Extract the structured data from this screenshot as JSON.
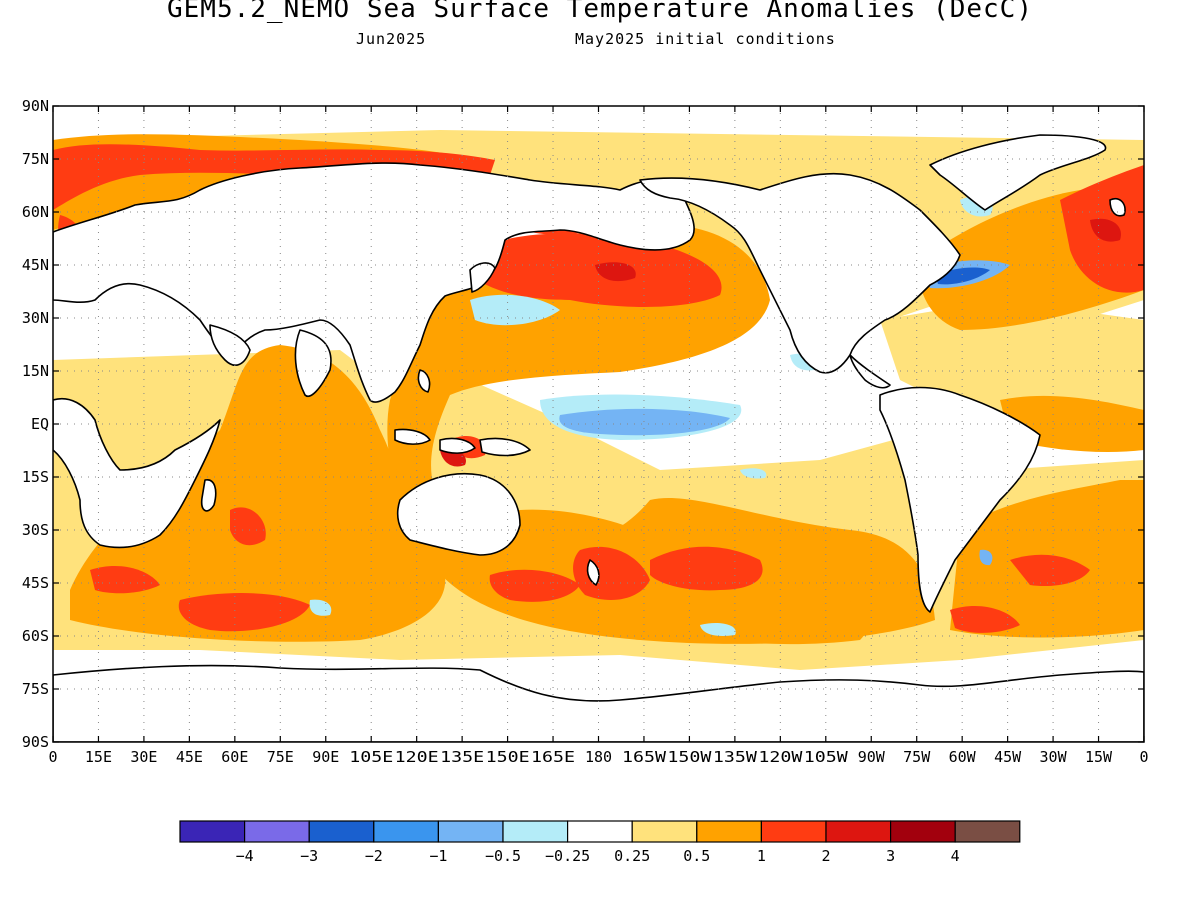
{
  "title": "GEM5.2_NEMO Sea Surface Temperature Anomalies (DecC)",
  "subtitle_left": "Jun2025",
  "subtitle_right": "May2025 initial conditions",
  "y_ticks": [
    "90N",
    "75N",
    "60N",
    "45N",
    "30N",
    "15N",
    "EQ",
    "15S",
    "30S",
    "45S",
    "60S",
    "75S",
    "90S"
  ],
  "x_ticks": [
    "0",
    "15E",
    "30E",
    "45E",
    "60E",
    "75E",
    "90E",
    "105E",
    "120E",
    "135E",
    "150E",
    "165E",
    "180",
    "165W",
    "150W",
    "135W",
    "120W",
    "105W",
    "90W",
    "75W",
    "60W",
    "45W",
    "30W",
    "15W",
    "0"
  ],
  "colorbar": {
    "colors": [
      "#3a25b6",
      "#7a6ae8",
      "#1a60cf",
      "#3a95ee",
      "#74b4f4",
      "#b4ecf8",
      "#ffffff",
      "#ffe27c",
      "#ffa200",
      "#ff3c12",
      "#dd1610",
      "#a2000d",
      "#7a4e44"
    ],
    "labels": [
      "-4",
      "-3",
      "-2",
      "-1",
      "-0.5",
      "-0.25",
      "0.25",
      "0.5",
      "1",
      "2",
      "3",
      "4"
    ]
  }
}
